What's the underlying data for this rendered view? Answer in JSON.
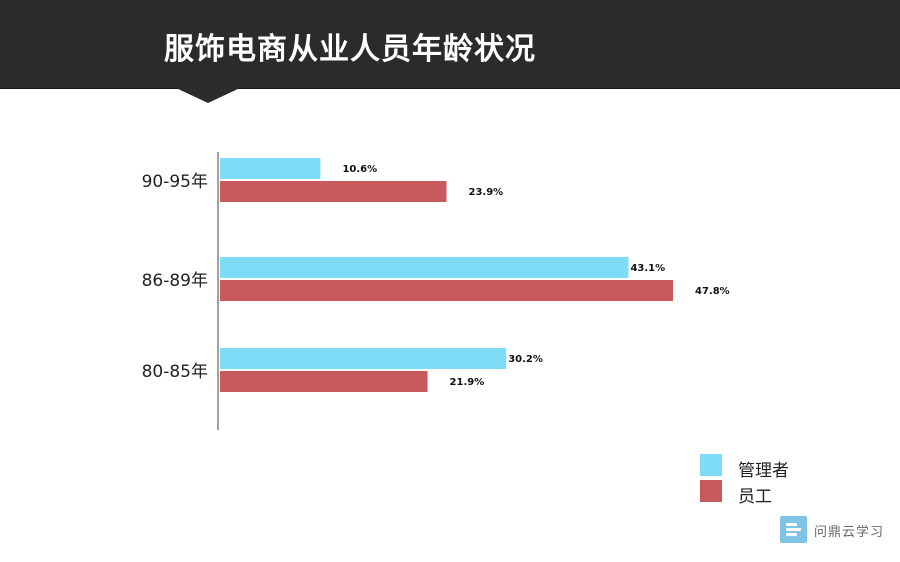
{
  "header": {
    "title": "服饰电商从业人员年龄状况"
  },
  "colors": {
    "manager": "#7fdcf7",
    "staff": "#c85a5e",
    "header_bg": "#2b2b2b"
  },
  "chart_data": {
    "type": "bar",
    "orientation": "horizontal",
    "title": "服饰电商从业人员年龄状况",
    "categories": [
      "90-95年",
      "86-89年",
      "80-85年"
    ],
    "series": [
      {
        "name": "管理者",
        "values": [
          10.6,
          43.1,
          30.2
        ],
        "labels": [
          "10.6%",
          "43.1%",
          "30.2%"
        ],
        "color": "#7fdcf7"
      },
      {
        "name": "员工",
        "values": [
          23.9,
          47.8,
          21.9
        ],
        "labels": [
          "23.9%",
          "47.8%",
          "21.9%"
        ],
        "color": "#c85a5e"
      }
    ],
    "xlim": [
      0,
      50
    ],
    "grid": false,
    "legend_position": "bottom-right"
  },
  "legend": {
    "items": [
      {
        "label": "管理者"
      },
      {
        "label": "员工"
      }
    ]
  },
  "watermark": {
    "text": "问鼎云学习",
    "icon": "brand-logo-icon"
  }
}
